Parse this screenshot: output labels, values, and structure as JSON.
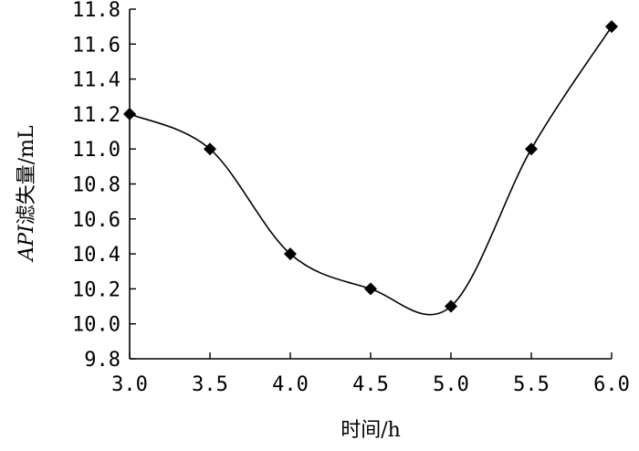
{
  "chart_data": {
    "type": "line",
    "xlabel": "时间/h",
    "ylabel": "API滤失量/mL",
    "xlim": [
      3.0,
      6.0
    ],
    "ylim": [
      9.8,
      11.8
    ],
    "x_ticks": [
      "3.0",
      "3.5",
      "4.0",
      "4.5",
      "5.0",
      "5.5",
      "6.0"
    ],
    "y_ticks": [
      "9.8",
      "10.0",
      "10.2",
      "10.4",
      "10.6",
      "10.8",
      "11.0",
      "11.2",
      "11.4",
      "11.6",
      "11.8"
    ],
    "grid": false,
    "smooth": true,
    "series": [
      {
        "marker": "diamond",
        "color": "#000000",
        "x": [
          3.0,
          3.5,
          4.0,
          4.5,
          5.0,
          5.5,
          6.0
        ],
        "y": [
          11.2,
          11.0,
          10.4,
          10.2,
          10.1,
          11.0,
          11.7
        ]
      }
    ]
  }
}
